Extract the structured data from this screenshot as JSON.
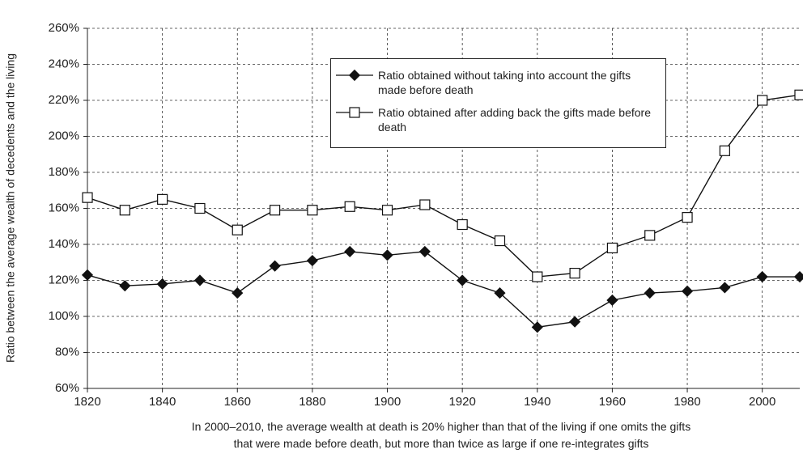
{
  "chart_data": {
    "type": "line",
    "ylabel": "Ratio between the average wealth of decedents and the living",
    "caption": [
      "In 2000–2010, the average wealth at death is 20% higher than that of the living if one omits the gifts",
      "that were made before death, but more than twice as large if one re-integrates gifts"
    ],
    "x": [
      1820,
      1830,
      1840,
      1850,
      1860,
      1870,
      1880,
      1890,
      1900,
      1910,
      1920,
      1930,
      1940,
      1950,
      1960,
      1970,
      1980,
      1990,
      2000,
      2010
    ],
    "series": [
      {
        "name": "Ratio obtained without taking into account the gifts made before death",
        "color": "#111111",
        "marker": "diamond",
        "values": [
          123,
          117,
          118,
          120,
          113,
          128,
          131,
          136,
          134,
          136,
          120,
          113,
          94,
          97,
          109,
          113,
          114,
          116,
          122,
          122
        ]
      },
      {
        "name": "Ratio obtained after adding back the gifts made before death",
        "color": "#111111",
        "marker": "square",
        "values": [
          166,
          159,
          165,
          160,
          148,
          159,
          159,
          161,
          159,
          162,
          151,
          142,
          122,
          124,
          138,
          145,
          155,
          192,
          220,
          223
        ]
      }
    ],
    "xlim": [
      1820,
      2010
    ],
    "xticks": [
      1820,
      1840,
      1860,
      1880,
      1900,
      1920,
      1940,
      1960,
      1980,
      2000
    ],
    "ylim": [
      60,
      260
    ],
    "yticks": [
      {
        "value": 60,
        "label": "60%"
      },
      {
        "value": 80,
        "label": "80%"
      },
      {
        "value": 100,
        "label": "100%"
      },
      {
        "value": 120,
        "label": "120%"
      },
      {
        "value": 140,
        "label": "140%"
      },
      {
        "value": 160,
        "label": "160%"
      },
      {
        "value": 180,
        "label": "180%"
      },
      {
        "value": 200,
        "label": "200%"
      },
      {
        "value": 220,
        "label": "220%"
      },
      {
        "value": 240,
        "label": "240%"
      },
      {
        "value": 260,
        "label": "260%"
      }
    ],
    "grid": true
  }
}
